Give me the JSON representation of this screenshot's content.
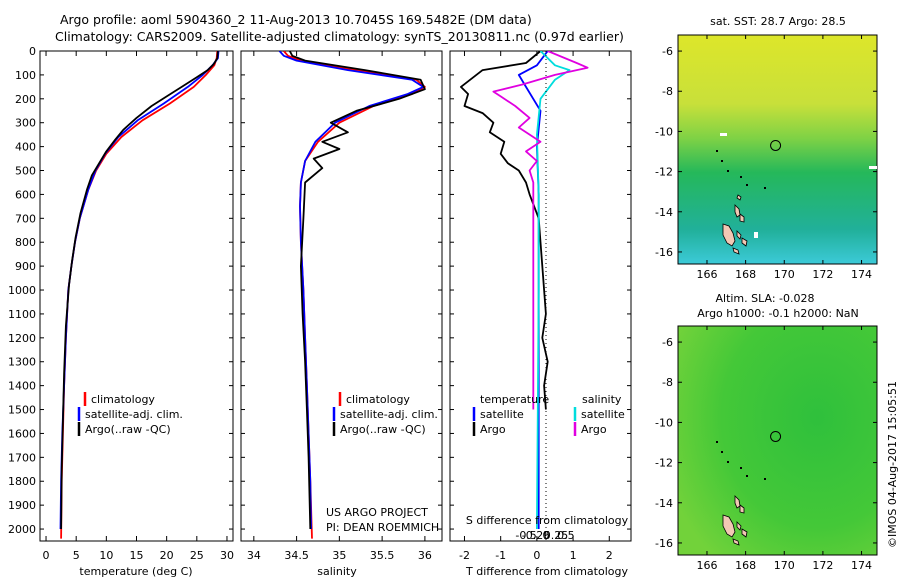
{
  "header": {
    "line1": "Argo profile: aoml 5904360_2 11-Aug-2013 10.7045S 169.5482E (DM data)",
    "line2": "Climatology: CARS2009. Satellite-adjusted climatology: synTS_20130811.nc (0.97d earlier)"
  },
  "footer": {
    "project": "US ARGO PROJECT",
    "pi": "PI: DEAN ROEMMICH",
    "stamp": "©IMOS 04-Aug-2017 15:05:51"
  },
  "chart_data": [
    {
      "type": "line",
      "panel": "temperature",
      "xlabel": "temperature (deg C)",
      "ylabel": "",
      "xlim": [
        -1,
        31
      ],
      "ylim": [
        2050,
        0
      ],
      "xticks": [
        0,
        5,
        10,
        15,
        20,
        25,
        30
      ],
      "yticks": [
        0,
        100,
        200,
        300,
        400,
        500,
        600,
        700,
        800,
        900,
        1000,
        1100,
        1200,
        1300,
        1400,
        1500,
        1600,
        1700,
        1800,
        1900,
        2000
      ],
      "legend": [
        "climatology",
        "satellite-adj. clim.",
        "Argo(..raw -QC)"
      ],
      "legend_placement": "lower-right",
      "series": [
        {
          "name": "climatology",
          "color": "#ff0000",
          "x": [
            28.4,
            28.3,
            27.9,
            26.5,
            24.5,
            20.5,
            16.0,
            12.5,
            10.0,
            8.3,
            7.0,
            5.6,
            4.8,
            4.2,
            3.7,
            3.3,
            3.0,
            2.8,
            2.6,
            2.5
          ],
          "y": [
            0,
            30,
            60,
            100,
            150,
            220,
            290,
            360,
            430,
            500,
            580,
            700,
            800,
            900,
            1000,
            1200,
            1400,
            1600,
            1800,
            2040
          ]
        },
        {
          "name": "satellite-adj. clim.",
          "color": "#0000ff",
          "x": [
            28.6,
            28.5,
            27.6,
            26.0,
            23.5,
            19.5,
            15.2,
            12.0,
            9.8,
            8.2,
            7.0,
            5.6,
            4.8,
            4.2,
            3.7,
            3.3,
            3.0,
            2.7,
            2.5,
            2.4
          ],
          "y": [
            0,
            30,
            60,
            100,
            150,
            220,
            290,
            360,
            430,
            500,
            580,
            700,
            800,
            900,
            1000,
            1200,
            1400,
            1600,
            1800,
            2000
          ]
        },
        {
          "name": "Argo(..raw -QC)",
          "color": "#000000",
          "x": [
            28.5,
            28.4,
            27.8,
            26.8,
            25.0,
            22.5,
            20.0,
            17.5,
            15.0,
            12.8,
            11.5,
            10.0,
            8.8,
            7.6,
            6.8,
            5.7,
            4.9,
            4.3,
            3.8,
            3.3,
            3.0,
            2.8,
            2.6,
            2.5
          ],
          "y": [
            0,
            30,
            55,
            80,
            110,
            150,
            190,
            230,
            280,
            330,
            370,
            420,
            470,
            520,
            580,
            680,
            780,
            880,
            980,
            1150,
            1350,
            1550,
            1750,
            2000
          ]
        }
      ]
    },
    {
      "type": "line",
      "panel": "salinity",
      "xlabel": "salinity",
      "ylabel": "",
      "xlim": [
        33.85,
        36.2
      ],
      "ylim": [
        2050,
        0
      ],
      "xticks": [
        34,
        34.5,
        35,
        35.5,
        36
      ],
      "legend": [
        "climatology",
        "satellite-adj. clim.",
        "Argo(..raw -QC)"
      ],
      "legend_placement": "lower-right",
      "series": [
        {
          "name": "climatology",
          "color": "#ff0000",
          "x": [
            34.35,
            34.4,
            34.55,
            35.2,
            35.9,
            36.0,
            35.85,
            35.4,
            35.0,
            34.75,
            34.6,
            34.55,
            34.54,
            34.55,
            34.58,
            34.6,
            34.62,
            34.64,
            34.66,
            34.68
          ],
          "y": [
            0,
            20,
            40,
            80,
            120,
            150,
            180,
            230,
            300,
            380,
            460,
            550,
            650,
            800,
            1000,
            1200,
            1400,
            1600,
            1800,
            2040
          ]
        },
        {
          "name": "satellite-adj. clim.",
          "color": "#0000ff",
          "x": [
            34.3,
            34.35,
            34.5,
            35.1,
            35.85,
            35.98,
            35.8,
            35.35,
            34.95,
            34.72,
            34.6,
            34.55,
            34.54,
            34.55,
            34.58,
            34.6,
            34.62,
            34.64,
            34.66,
            34.67
          ],
          "y": [
            0,
            20,
            40,
            80,
            120,
            150,
            180,
            230,
            300,
            380,
            460,
            550,
            650,
            800,
            1000,
            1200,
            1400,
            1600,
            1800,
            2000
          ]
        },
        {
          "name": "Argo(..raw -QC)",
          "color": "#000000",
          "x": [
            34.42,
            34.45,
            34.6,
            35.3,
            35.95,
            36.0,
            35.7,
            35.2,
            34.9,
            35.1,
            34.8,
            35.0,
            34.7,
            34.8,
            34.6,
            34.58,
            34.55,
            34.57,
            34.6,
            34.62,
            34.64,
            34.66
          ],
          "y": [
            0,
            20,
            40,
            80,
            120,
            160,
            200,
            250,
            300,
            340,
            380,
            410,
            450,
            490,
            550,
            700,
            900,
            1100,
            1300,
            1500,
            1700,
            2000
          ]
        }
      ]
    },
    {
      "type": "line",
      "panel": "differences",
      "xlabel": "T difference from climatology",
      "xlabel_top": "S difference from climatology",
      "ylabel": "",
      "xlim": [
        -2.4,
        2.6
      ],
      "ylim": [
        2050,
        0
      ],
      "xticks": [
        -2,
        -1,
        0,
        1,
        2
      ],
      "s_xticks": [
        -0.5,
        -0.25,
        0,
        0.25,
        0.5
      ],
      "legend": [
        "temperature",
        "satellite",
        "Argo",
        "salinity",
        "satellite",
        "Argo"
      ],
      "legend_placement": "lower-center",
      "series": [
        {
          "name": "satellite",
          "group": "temperature",
          "color": "#0000ff",
          "x": [
            0.3,
            0.0,
            -0.5,
            -0.3,
            0.1,
            0.0,
            0.05,
            0.05,
            0.05
          ],
          "y": [
            0,
            60,
            100,
            150,
            250,
            400,
            600,
            1000,
            2000
          ]
        },
        {
          "name": "Argo",
          "group": "temperature",
          "color": "#000000",
          "x": [
            0.1,
            -0.3,
            -1.5,
            -2.1,
            -1.9,
            -2.0,
            -1.5,
            -1.2,
            -1.3,
            -0.9,
            -1.0,
            -0.8,
            -0.5,
            -0.3,
            -0.2,
            0.05,
            0.1,
            0.15,
            0.2,
            0.25,
            0.15,
            0.3,
            0.2,
            0.25
          ],
          "y": [
            0,
            50,
            80,
            150,
            180,
            230,
            260,
            300,
            340,
            380,
            430,
            470,
            500,
            550,
            600,
            700,
            800,
            900,
            1000,
            1100,
            1200,
            1300,
            1400,
            1500
          ]
        },
        {
          "name": "satellite",
          "group": "salinity",
          "color": "#00dddd",
          "x": [
            0.1,
            0.5,
            0.9,
            0.5,
            0.1,
            0.0,
            0.05,
            0.05,
            0.0
          ],
          "y": [
            0,
            60,
            80,
            120,
            200,
            350,
            600,
            1000,
            2000
          ]
        },
        {
          "name": "Argo",
          "group": "salinity",
          "color": "#e000e0",
          "x": [
            0.3,
            1.1,
            1.4,
            0.5,
            -0.4,
            -1.2,
            -1.0,
            -0.6,
            -0.2,
            -0.5,
            0.1,
            -0.3,
            0.0,
            -0.2,
            -0.1,
            -0.1
          ],
          "y": [
            0,
            50,
            70,
            100,
            140,
            170,
            190,
            230,
            280,
            320,
            380,
            420,
            460,
            500,
            550,
            1500
          ]
        }
      ]
    },
    {
      "type": "heatmap",
      "panel": "sst-map",
      "title": "sat. SST: 28.7  Argo: 28.5",
      "xlim": [
        164.5,
        174.8
      ],
      "ylim": [
        -16.6,
        -5.2
      ],
      "xticks": [
        166,
        168,
        170,
        172,
        174
      ],
      "yticks": [
        -6,
        -8,
        -10,
        -12,
        -14,
        -16
      ],
      "argo_position": {
        "lon": 169.55,
        "lat": -10.7
      }
    },
    {
      "type": "heatmap",
      "panel": "sla-map",
      "title": "Altim. SLA: -0.028",
      "subtitle": "Argo h1000: -0.1  h2000: NaN",
      "xlim": [
        164.5,
        174.8
      ],
      "ylim": [
        -16.6,
        -5.2
      ],
      "xticks": [
        166,
        168,
        170,
        172,
        174
      ],
      "yticks": [
        -6,
        -8,
        -10,
        -12,
        -14,
        -16
      ],
      "argo_position": {
        "lon": 169.55,
        "lat": -10.7
      }
    }
  ]
}
